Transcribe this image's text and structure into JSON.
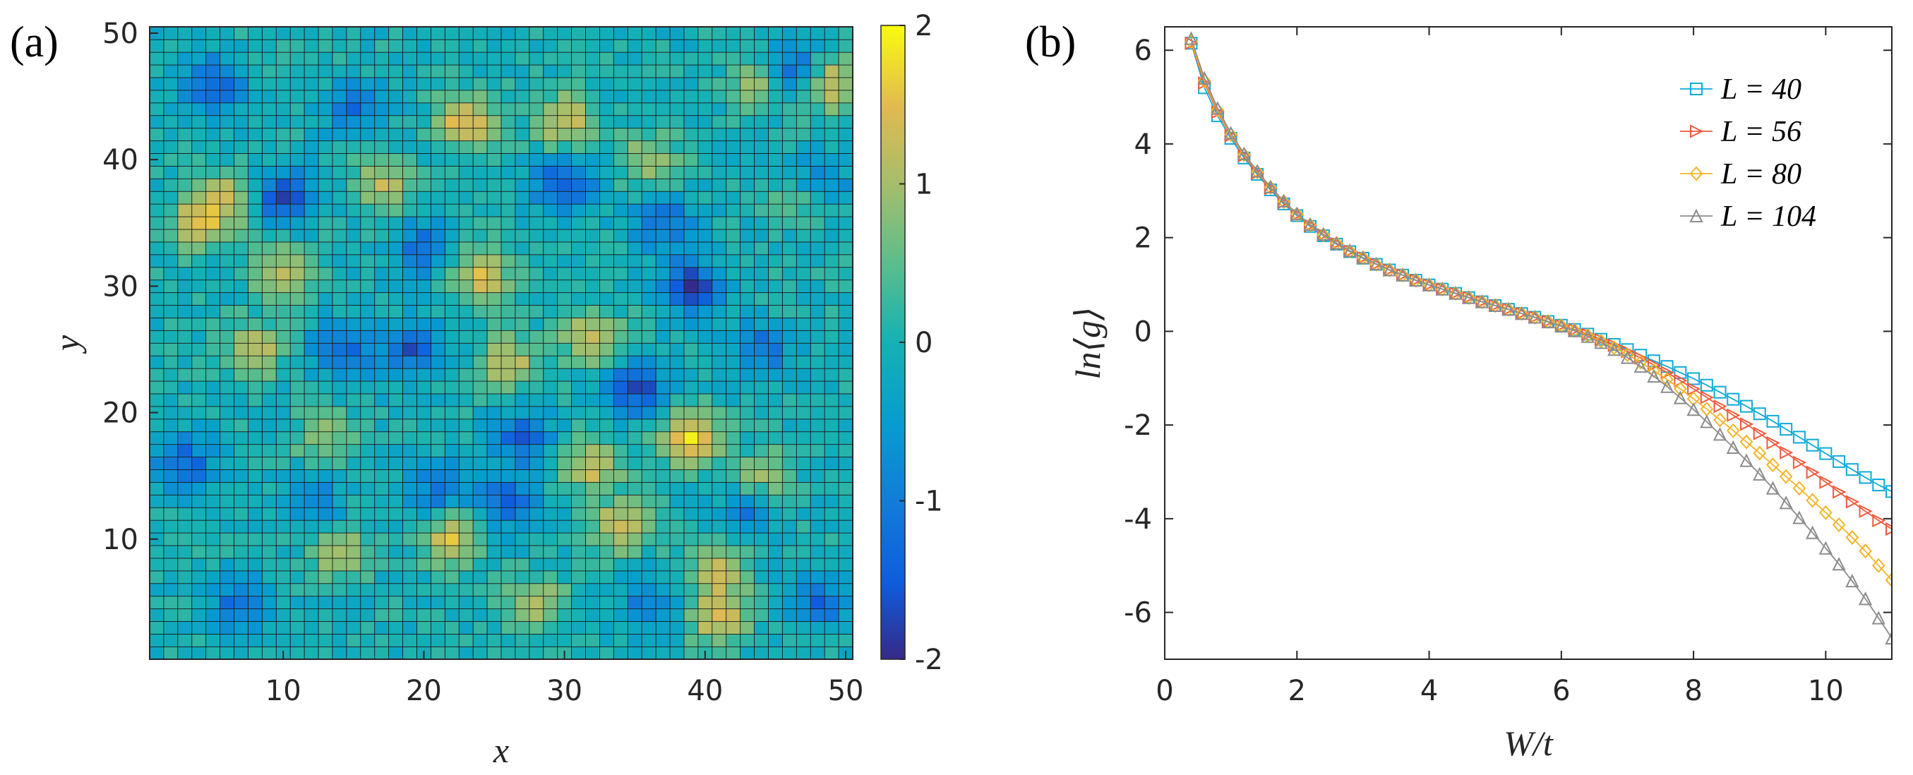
{
  "panel_a_label": "(a)",
  "panel_b_label": "(b)",
  "chart_data": [
    {
      "type": "heatmap",
      "xlabel": "x",
      "ylabel": "y",
      "xlim": [
        0.5,
        50.5
      ],
      "ylim": [
        0.5,
        50.5
      ],
      "xticks": [
        10,
        20,
        30,
        40,
        50
      ],
      "yticks": [
        10,
        20,
        30,
        40,
        50
      ],
      "grid_size": [
        50,
        50
      ],
      "colorbar": {
        "range": [
          -2,
          2
        ],
        "ticks": [
          -2,
          -1,
          0,
          1,
          2
        ],
        "colormap": "parula"
      },
      "features": [
        {
          "x": 23,
          "y": 43,
          "v": 1.6
        },
        {
          "x": 30,
          "y": 43,
          "v": 1.4
        },
        {
          "x": 24,
          "y": 31,
          "v": 1.5
        },
        {
          "x": 39,
          "y": 18,
          "v": 1.7
        },
        {
          "x": 41,
          "y": 4,
          "v": 1.6
        },
        {
          "x": 32,
          "y": 26,
          "v": 1.5
        },
        {
          "x": 10,
          "y": 31,
          "v": 1.4
        },
        {
          "x": 4,
          "y": 35,
          "v": 1.3
        },
        {
          "x": 6,
          "y": 37,
          "v": 1.2
        },
        {
          "x": 32,
          "y": 16,
          "v": 1.4
        },
        {
          "x": 34,
          "y": 11,
          "v": 1.3
        },
        {
          "x": 22,
          "y": 10,
          "v": 1.5
        },
        {
          "x": 44,
          "y": 46,
          "v": 1.3
        },
        {
          "x": 49,
          "y": 46,
          "v": 1.4
        },
        {
          "x": 41,
          "y": 8,
          "v": 1.3
        },
        {
          "x": 8,
          "y": 25,
          "v": 1.2
        },
        {
          "x": 14,
          "y": 9,
          "v": 1.1
        },
        {
          "x": 17,
          "y": 38,
          "v": 1.1
        },
        {
          "x": 26,
          "y": 24,
          "v": 1.2
        },
        {
          "x": 36,
          "y": 40,
          "v": 1.1
        },
        {
          "x": 13,
          "y": 18,
          "v": 1.0
        },
        {
          "x": 44,
          "y": 15,
          "v": 1.0
        },
        {
          "x": 28,
          "y": 5,
          "v": 1.0
        },
        {
          "x": 47,
          "y": 37,
          "v": 0.9
        },
        {
          "x": 10,
          "y": 37,
          "v": -1.6
        },
        {
          "x": 30,
          "y": 38,
          "v": -1.6
        },
        {
          "x": 39,
          "y": 30,
          "v": -1.8
        },
        {
          "x": 35,
          "y": 22,
          "v": -1.7
        },
        {
          "x": 46,
          "y": 47,
          "v": -1.5
        },
        {
          "x": 5,
          "y": 46,
          "v": -1.4
        },
        {
          "x": 19,
          "y": 25,
          "v": -1.4
        },
        {
          "x": 14,
          "y": 25,
          "v": -1.3
        },
        {
          "x": 27,
          "y": 18,
          "v": -1.3
        },
        {
          "x": 26,
          "y": 13,
          "v": -1.3
        },
        {
          "x": 48,
          "y": 5,
          "v": -1.2
        },
        {
          "x": 3,
          "y": 16,
          "v": -1.3
        },
        {
          "x": 7,
          "y": 5,
          "v": -1.2
        },
        {
          "x": 15,
          "y": 44,
          "v": -1.1
        },
        {
          "x": 20,
          "y": 33,
          "v": -1.2
        },
        {
          "x": 44,
          "y": 25,
          "v": -1.1
        },
        {
          "x": 43,
          "y": 12,
          "v": -1.0
        },
        {
          "x": 36,
          "y": 5,
          "v": -1.0
        },
        {
          "x": 48,
          "y": 38,
          "v": -1.2
        },
        {
          "x": 21,
          "y": 14,
          "v": -1.1
        },
        {
          "x": 12,
          "y": 13,
          "v": -1.0
        },
        {
          "x": 37,
          "y": 35,
          "v": -1.2
        }
      ]
    },
    {
      "type": "line",
      "xlabel": "W/t",
      "ylabel": "ln⟨g⟩",
      "xlim": [
        0,
        11
      ],
      "ylim": [
        -7,
        6.5
      ],
      "xticks": [
        0,
        2,
        4,
        6,
        8,
        10
      ],
      "yticks": [
        -6,
        -4,
        -2,
        0,
        2,
        4,
        6
      ],
      "ytick_labels": [
        "-6",
        "-4",
        "-2",
        "0",
        "2",
        "4",
        "6"
      ],
      "legend_position": "top-right",
      "x": [
        0.4,
        0.6,
        0.8,
        1.0,
        1.2,
        1.4,
        1.6,
        1.8,
        2.0,
        2.2,
        2.4,
        2.6,
        2.8,
        3.0,
        3.2,
        3.4,
        3.6,
        3.8,
        4.0,
        4.2,
        4.4,
        4.6,
        4.8,
        5.0,
        5.2,
        5.4,
        5.6,
        5.8,
        6.0,
        6.2,
        6.4,
        6.6,
        6.8,
        7.0,
        7.2,
        7.4,
        7.6,
        7.8,
        8.0,
        8.2,
        8.4,
        8.6,
        8.8,
        9.0,
        9.2,
        9.4,
        9.6,
        9.8,
        10.0,
        10.2,
        10.4,
        10.6,
        10.8,
        11.0
      ],
      "series": [
        {
          "name": "L = 40",
          "color": "#0FAAD8",
          "marker": "square",
          "values": [
            6.15,
            5.2,
            4.6,
            4.12,
            3.7,
            3.35,
            3.02,
            2.72,
            2.47,
            2.24,
            2.04,
            1.86,
            1.7,
            1.56,
            1.43,
            1.31,
            1.2,
            1.09,
            0.99,
            0.9,
            0.81,
            0.72,
            0.63,
            0.55,
            0.47,
            0.38,
            0.3,
            0.21,
            0.13,
            0.04,
            -0.06,
            -0.17,
            -0.28,
            -0.39,
            -0.51,
            -0.63,
            -0.75,
            -0.88,
            -1.01,
            -1.15,
            -1.3,
            -1.45,
            -1.6,
            -1.76,
            -1.92,
            -2.09,
            -2.26,
            -2.43,
            -2.61,
            -2.78,
            -2.95,
            -3.12,
            -3.28,
            -3.42
          ]
        },
        {
          "name": "L = 56",
          "color": "#F05A3C",
          "marker": "triangle-right",
          "values": [
            6.15,
            5.3,
            4.68,
            4.18,
            3.75,
            3.38,
            3.05,
            2.75,
            2.49,
            2.26,
            2.06,
            1.87,
            1.71,
            1.57,
            1.43,
            1.31,
            1.2,
            1.09,
            0.99,
            0.9,
            0.81,
            0.72,
            0.63,
            0.55,
            0.47,
            0.38,
            0.3,
            0.21,
            0.12,
            0.03,
            -0.07,
            -0.18,
            -0.3,
            -0.43,
            -0.57,
            -0.72,
            -0.88,
            -1.05,
            -1.23,
            -1.41,
            -1.6,
            -1.79,
            -1.98,
            -2.18,
            -2.38,
            -2.59,
            -2.8,
            -3.01,
            -3.22,
            -3.43,
            -3.64,
            -3.84,
            -4.04,
            -4.22
          ]
        },
        {
          "name": "L = 80",
          "color": "#F2B428",
          "marker": "diamond",
          "values": [
            6.18,
            5.35,
            4.72,
            4.2,
            3.77,
            3.4,
            3.07,
            2.77,
            2.5,
            2.27,
            2.06,
            1.88,
            1.71,
            1.57,
            1.43,
            1.31,
            1.2,
            1.09,
            0.99,
            0.9,
            0.81,
            0.72,
            0.63,
            0.55,
            0.47,
            0.38,
            0.3,
            0.21,
            0.12,
            0.02,
            -0.09,
            -0.21,
            -0.35,
            -0.5,
            -0.66,
            -0.84,
            -1.03,
            -1.23,
            -1.44,
            -1.66,
            -1.89,
            -2.12,
            -2.36,
            -2.6,
            -2.85,
            -3.1,
            -3.35,
            -3.61,
            -3.87,
            -4.13,
            -4.4,
            -4.69,
            -5.0,
            -5.31
          ]
        },
        {
          "name": "L = 104",
          "color": "#8C8C8C",
          "marker": "triangle-up",
          "values": [
            6.25,
            5.4,
            4.76,
            4.23,
            3.79,
            3.42,
            3.08,
            2.78,
            2.51,
            2.28,
            2.07,
            1.88,
            1.72,
            1.57,
            1.44,
            1.31,
            1.2,
            1.09,
            0.99,
            0.9,
            0.81,
            0.72,
            0.63,
            0.55,
            0.47,
            0.38,
            0.3,
            0.2,
            0.11,
            0.01,
            -0.11,
            -0.24,
            -0.39,
            -0.56,
            -0.75,
            -0.96,
            -1.18,
            -1.42,
            -1.67,
            -1.93,
            -2.2,
            -2.48,
            -2.76,
            -3.05,
            -3.35,
            -3.66,
            -3.98,
            -4.3,
            -4.63,
            -4.97,
            -5.33,
            -5.71,
            -6.12,
            -6.55
          ]
        }
      ]
    }
  ]
}
